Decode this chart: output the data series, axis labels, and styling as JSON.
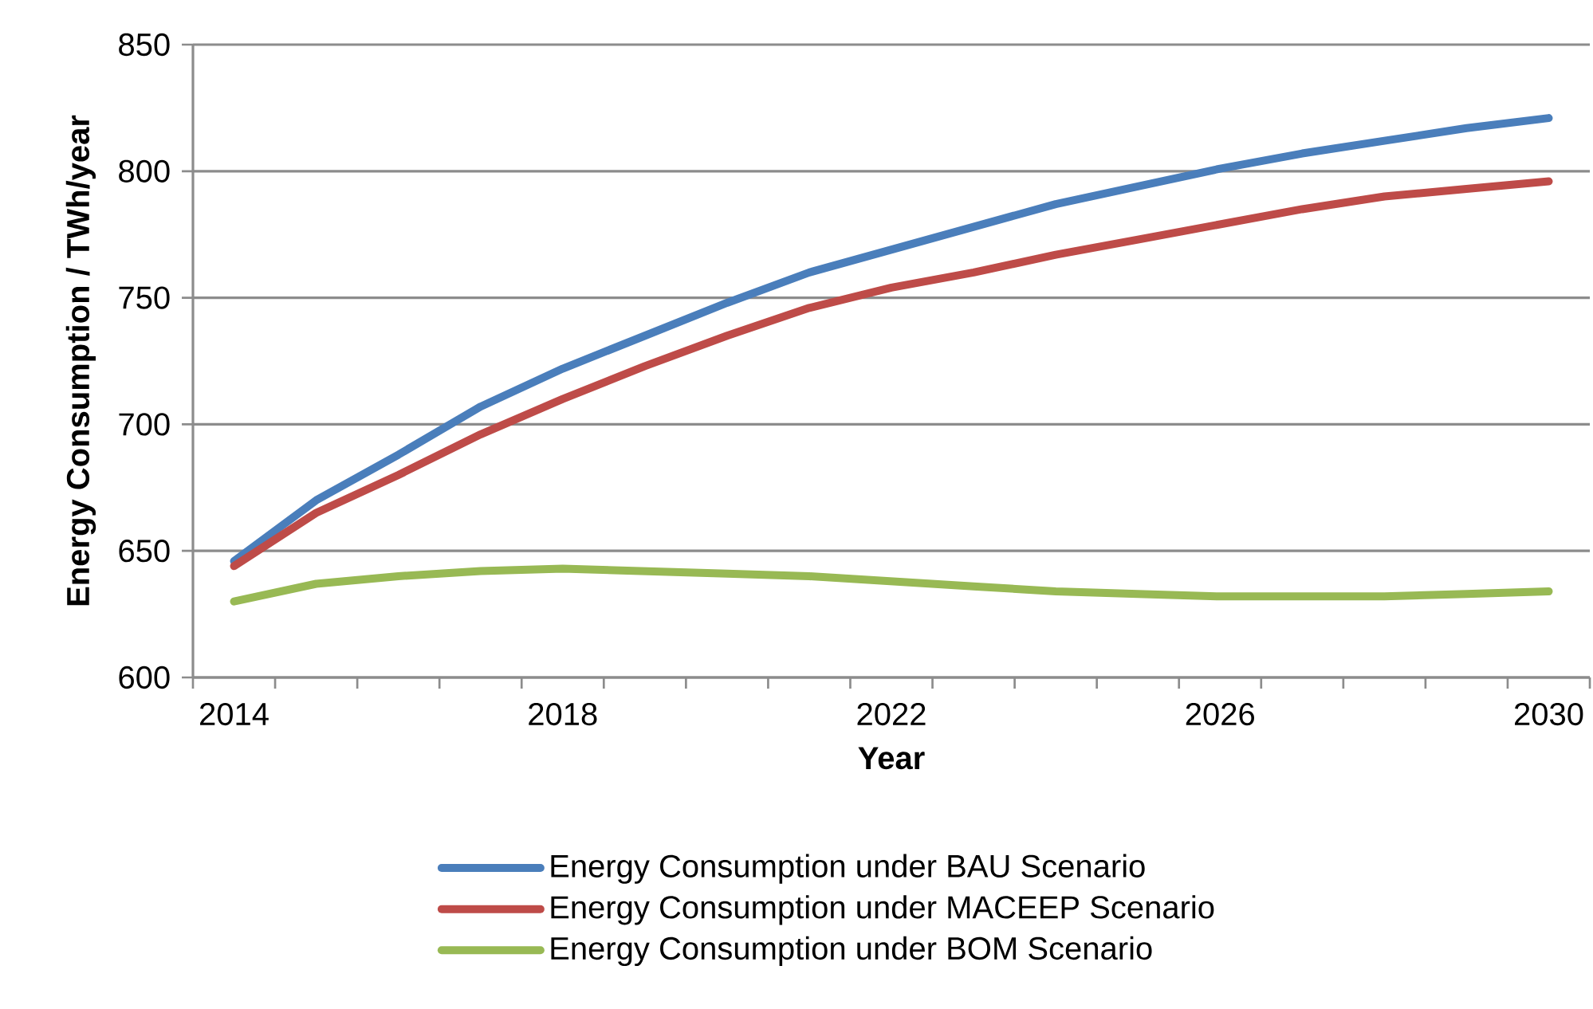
{
  "chart_data": {
    "type": "line",
    "xlabel": "Year",
    "ylabel": "Energy Consumption / TWh/year",
    "x": [
      2014,
      2015,
      2016,
      2017,
      2018,
      2019,
      2020,
      2021,
      2022,
      2023,
      2024,
      2025,
      2026,
      2027,
      2028,
      2029,
      2030
    ],
    "series": [
      {
        "name": "Energy Consumption under BAU Scenario",
        "color": "#4a7ebb",
        "values": [
          646,
          670,
          688,
          707,
          722,
          735,
          748,
          760,
          769,
          778,
          787,
          794,
          801,
          807,
          812,
          817,
          821
        ]
      },
      {
        "name": "Energy Consumption under MACEEP Scenario",
        "color": "#be4b48",
        "values": [
          644,
          665,
          680,
          696,
          710,
          723,
          735,
          746,
          754,
          760,
          767,
          773,
          779,
          785,
          790,
          793,
          796
        ]
      },
      {
        "name": "Energy Consumption under BOM Scenario",
        "color": "#98b954",
        "values": [
          630,
          637,
          640,
          642,
          643,
          642,
          641,
          640,
          638,
          636,
          634,
          633,
          632,
          632,
          632,
          633,
          634
        ]
      }
    ],
    "xlim": [
      2013.5,
      2030.5
    ],
    "xticks": [
      2014,
      2018,
      2022,
      2026,
      2030
    ],
    "ylim": [
      600,
      850
    ],
    "yticks": [
      600,
      650,
      700,
      750,
      800,
      850
    ],
    "grid": "y",
    "legend": "bottom",
    "line_style": "solid"
  }
}
